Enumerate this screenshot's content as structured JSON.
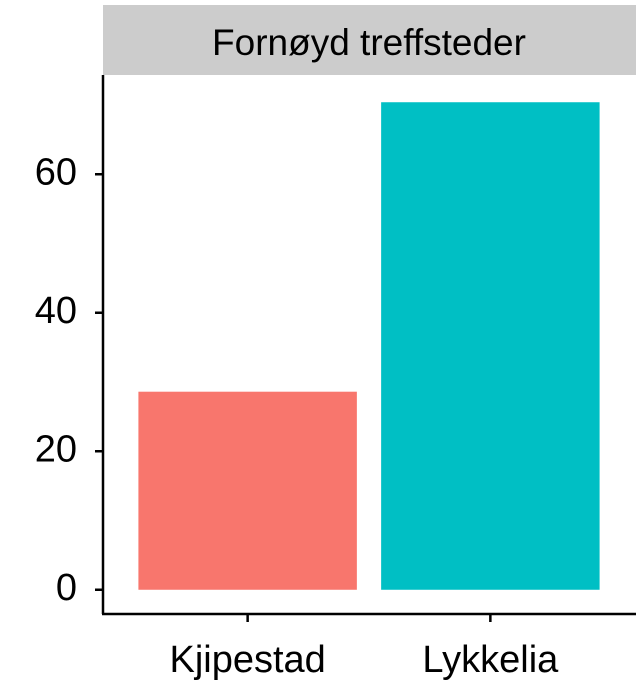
{
  "chart_data": {
    "type": "bar",
    "title": "Fornøyd treffsteder",
    "categories": [
      "Kjipestad",
      "Lykkelia"
    ],
    "values": [
      28.6,
      70.4
    ],
    "colors": [
      "#F8766D",
      "#00BFC4"
    ],
    "ylim": [
      -3.5,
      73.9
    ],
    "yticks": [
      0,
      20,
      40,
      60
    ]
  }
}
